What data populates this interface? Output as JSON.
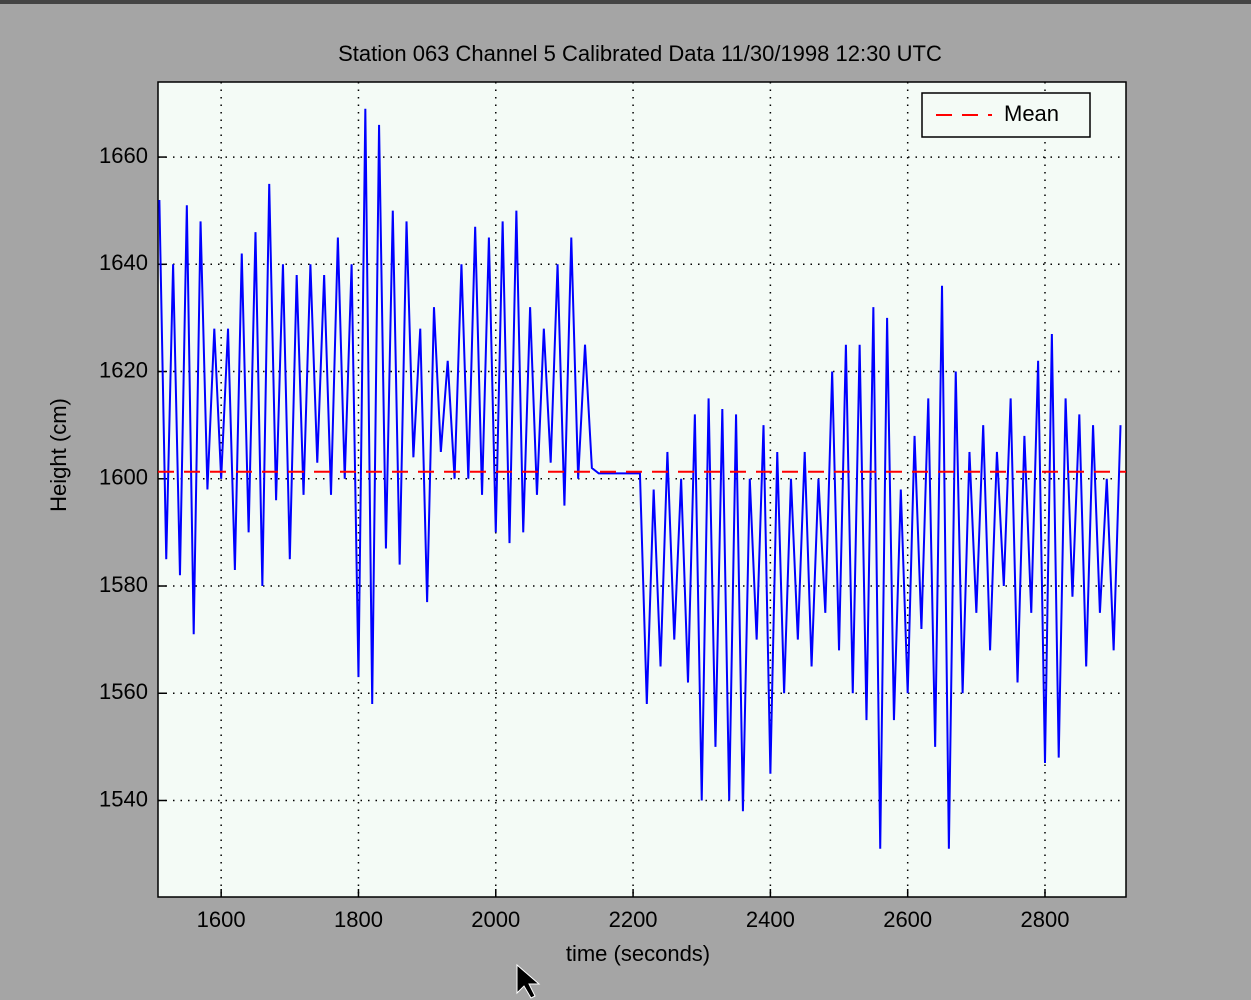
{
  "chart_data": {
    "type": "line",
    "title": "Station 063 Channel 5 Calibrated Data  11/30/1998 12:30 UTC",
    "x_label": "time (seconds)",
    "y_label": "Height (cm)",
    "xlim": [
      1508,
      2918
    ],
    "ylim": [
      1522,
      1674
    ],
    "xticks": [
      1600,
      1800,
      2000,
      2200,
      2400,
      2600,
      2800
    ],
    "yticks": [
      1540,
      1560,
      1580,
      1600,
      1620,
      1640,
      1660
    ],
    "grid": true,
    "legend": "upper right",
    "x": [
      1510,
      1520,
      1530,
      1540,
      1550,
      1560,
      1570,
      1580,
      1590,
      1600,
      1610,
      1620,
      1630,
      1640,
      1650,
      1660,
      1670,
      1680,
      1690,
      1700,
      1710,
      1720,
      1730,
      1740,
      1750,
      1760,
      1770,
      1780,
      1790,
      1800,
      1810,
      1820,
      1830,
      1840,
      1850,
      1860,
      1870,
      1880,
      1890,
      1900,
      1910,
      1920,
      1930,
      1940,
      1950,
      1960,
      1970,
      1980,
      1990,
      2000,
      2010,
      2020,
      2030,
      2040,
      2050,
      2060,
      2070,
      2080,
      2090,
      2100,
      2110,
      2120,
      2130,
      2140,
      2150,
      2160,
      2170,
      2180,
      2190,
      2200,
      2210,
      2220,
      2230,
      2240,
      2250,
      2260,
      2270,
      2280,
      2290,
      2300,
      2310,
      2320,
      2330,
      2340,
      2350,
      2360,
      2370,
      2380,
      2390,
      2400,
      2410,
      2420,
      2430,
      2440,
      2450,
      2460,
      2470,
      2480,
      2490,
      2500,
      2510,
      2520,
      2530,
      2540,
      2550,
      2560,
      2570,
      2580,
      2590,
      2600,
      2610,
      2620,
      2630,
      2640,
      2650,
      2660,
      2670,
      2680,
      2690,
      2700,
      2710,
      2720,
      2730,
      2740,
      2750,
      2760,
      2770,
      2780,
      2790,
      2800,
      2810,
      2820,
      2830,
      2840,
      2850,
      2860,
      2870,
      2880,
      2890,
      2900,
      2910
    ],
    "series": [
      {
        "color": "#0000ff",
        "values": [
          1652,
          1585,
          1640,
          1582,
          1651,
          1571,
          1648,
          1598,
          1628,
          1600,
          1628,
          1583,
          1642,
          1590,
          1646,
          1580,
          1655,
          1596,
          1640,
          1585,
          1638,
          1597,
          1640,
          1603,
          1638,
          1597,
          1645,
          1600,
          1640,
          1563,
          1669,
          1558,
          1666,
          1587,
          1650,
          1584,
          1648,
          1604,
          1628,
          1577,
          1632,
          1605,
          1622,
          1600,
          1640,
          1600,
          1647,
          1597,
          1645,
          1590,
          1648,
          1588,
          1650,
          1590,
          1632,
          1597,
          1628,
          1603,
          1640,
          1595,
          1645,
          1600,
          1625,
          1602,
          1601,
          1601,
          1601,
          1601,
          1601,
          1601,
          1601,
          1558,
          1598,
          1565,
          1605,
          1570,
          1600,
          1562,
          1612,
          1540,
          1615,
          1550,
          1613,
          1540,
          1612,
          1538,
          1600,
          1570,
          1610,
          1545,
          1605,
          1560,
          1600,
          1570,
          1605,
          1565,
          1600,
          1575,
          1620,
          1568,
          1625,
          1560,
          1625,
          1555,
          1632,
          1531,
          1630,
          1555,
          1598,
          1560,
          1608,
          1572,
          1615,
          1550,
          1636,
          1531,
          1620,
          1560,
          1605,
          1575,
          1610,
          1568,
          1605,
          1580,
          1615,
          1562,
          1608,
          1575,
          1622,
          1547,
          1627,
          1548,
          1615,
          1578,
          1612,
          1565,
          1610,
          1575,
          1600,
          1568,
          1610
        ]
      }
    ],
    "mean": {
      "name": "Mean",
      "value": 1601.3,
      "color": "#ff0000"
    }
  }
}
